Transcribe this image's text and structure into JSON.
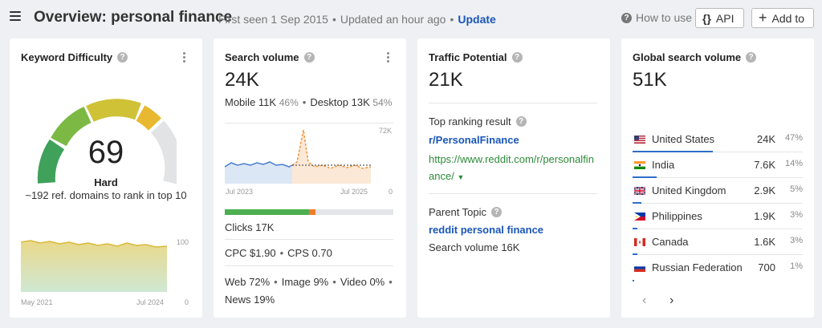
{
  "header": {
    "title": "Overview: personal finance",
    "first_seen": "First seen 1 Sep 2015",
    "updated": "Updated an hour ago",
    "update_link": "Update",
    "how_to_use": "How to use",
    "api_label": "API",
    "api_icon": "{}",
    "add_label": "Add to",
    "add_icon": "+"
  },
  "keyword_difficulty": {
    "title": "Keyword Difficulty",
    "value": "69",
    "label": "Hard",
    "description": "~192 ref. domains to rank in top 10",
    "chart_x_start": "May 2021",
    "chart_x_end": "Jul 2024",
    "chart_y_max": "100",
    "chart_y_min": "0"
  },
  "search_volume": {
    "title": "Search volume",
    "value": "24K",
    "mobile_label": "Mobile",
    "mobile_value": "11K",
    "mobile_pct": "46%",
    "desktop_label": "Desktop",
    "desktop_value": "13K",
    "desktop_pct": "54%",
    "chart_y_max": "72K",
    "chart_y_min": "0",
    "chart_x_start": "Jul 2023",
    "chart_x_end": "Jul 2025",
    "clicks": "Clicks 17K",
    "cpc": "CPC $1.90",
    "cps": "CPS 0.70",
    "web": "Web 72%",
    "image": "Image 9%",
    "video": "Video 0%",
    "news": "News 19%",
    "click_share": {
      "organic": 0.5,
      "paid": 0.04,
      "unclicked": 0.46
    }
  },
  "traffic_potential": {
    "title": "Traffic Potential",
    "value": "21K",
    "top_ranking_label": "Top ranking result",
    "top_ranking_title": "r/PersonalFinance",
    "top_ranking_url_line1": "https://www.reddit.com/r/personalfin",
    "top_ranking_url_line2": "ance/",
    "parent_topic_label": "Parent Topic",
    "parent_topic": "reddit personal finance",
    "parent_volume": "Search volume 16K"
  },
  "global_volume": {
    "title": "Global search volume",
    "value": "51K",
    "countries": [
      {
        "name": "United States",
        "value": "24K",
        "pct": "47%",
        "share": 0.47,
        "flag": "us-flag"
      },
      {
        "name": "India",
        "value": "7.6K",
        "pct": "14%",
        "share": 0.14,
        "flag": "in-flag"
      },
      {
        "name": "United Kingdom",
        "value": "2.9K",
        "pct": "5%",
        "share": 0.05,
        "flag": "gb-flag"
      },
      {
        "name": "Philippines",
        "value": "1.9K",
        "pct": "3%",
        "share": 0.03,
        "flag": "ph-flag"
      },
      {
        "name": "Canada",
        "value": "1.6K",
        "pct": "3%",
        "share": 0.03,
        "flag": "ca-flag"
      },
      {
        "name": "Russian Federation",
        "value": "700",
        "pct": "1%",
        "share": 0.01,
        "flag": "ru-flag"
      }
    ],
    "prev_icon": "‹",
    "next_icon": "›"
  },
  "colors": {
    "accent_blue": "#1a56b8",
    "url_green": "#2e8b3a",
    "gauge_green": "#4caf50",
    "gauge_yellow": "#e6c12e",
    "gauge_gray": "#e2e3e5",
    "volume_line": "#4a7ecf",
    "forecast_line": "#f0943c",
    "clicks_green": "#4caf50",
    "clicks_orange": "#f07c2a"
  }
}
